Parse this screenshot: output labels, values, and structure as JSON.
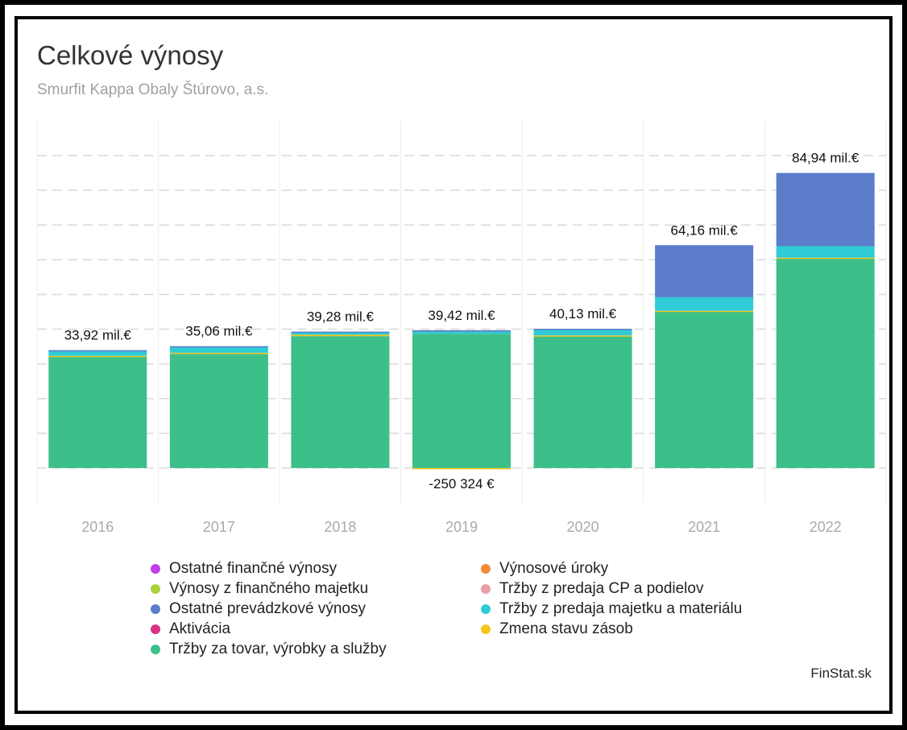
{
  "header": {
    "title": "Celkové výnosy",
    "subtitle": "Smurfit Kappa Obaly Štúrovo, a.s."
  },
  "brand": "FinStat.sk",
  "chart_data": {
    "type": "bar",
    "stacked": true,
    "title": "Celkové výnosy",
    "subtitle": "Smurfit Kappa Obaly Štúrovo, a.s.",
    "categories": [
      "2016",
      "2017",
      "2018",
      "2019",
      "2020",
      "2021",
      "2022"
    ],
    "ylim": [
      -10,
      100
    ],
    "grid": true,
    "legend_position": "bottom",
    "totals_labels": [
      "33,92 mil.€",
      "35,06 mil.€",
      "39,28 mil.€",
      "39,42 mil.€",
      "40,13 mil.€",
      "64,16 mil.€",
      "84,94 mil.€"
    ],
    "negative_label": {
      "category": "2019",
      "label": "-250 324 €"
    },
    "series": [
      {
        "name": "Ostatné finančné výnosy",
        "color": "#c03fea",
        "values": [
          0,
          0,
          0,
          0,
          0,
          0,
          0
        ]
      },
      {
        "name": "Výnosové úroky",
        "color": "#f28c38",
        "values": [
          0,
          0,
          0,
          0,
          0,
          0,
          0
        ]
      },
      {
        "name": "Výnosy z finančného majetku",
        "color": "#a8d33a",
        "values": [
          0,
          0,
          0,
          0,
          0,
          0,
          0
        ]
      },
      {
        "name": "Tržby z predaja CP a podielov",
        "color": "#e8a0a8",
        "values": [
          0,
          0,
          0,
          0,
          0,
          0,
          0
        ]
      },
      {
        "name": "Ostatné prevádzkové výnosy",
        "color": "#5b7cc9",
        "values": [
          0.05,
          0.1,
          0.1,
          0.4,
          0.1,
          15.0,
          21.1
        ]
      },
      {
        "name": "Tržby z predaja majetku a materiálu",
        "color": "#2fcbd6",
        "values": [
          1.6,
          1.8,
          0.8,
          0.6,
          1.8,
          3.9,
          3.3
        ]
      },
      {
        "name": "Aktivácia",
        "color": "#d63384",
        "values": [
          0,
          0,
          0,
          0,
          0,
          0,
          0
        ]
      },
      {
        "name": "Zmena stavu zásob",
        "color": "#f5c518",
        "values": [
          0.1,
          0.3,
          0.4,
          -0.25,
          0.1,
          0.3,
          0.3
        ]
      },
      {
        "name": "Tržby za tovar, výrobky a služby",
        "color": "#3dbf8a",
        "values": [
          32.2,
          32.9,
          38.0,
          38.7,
          38.1,
          45.0,
          60.3
        ]
      }
    ]
  }
}
